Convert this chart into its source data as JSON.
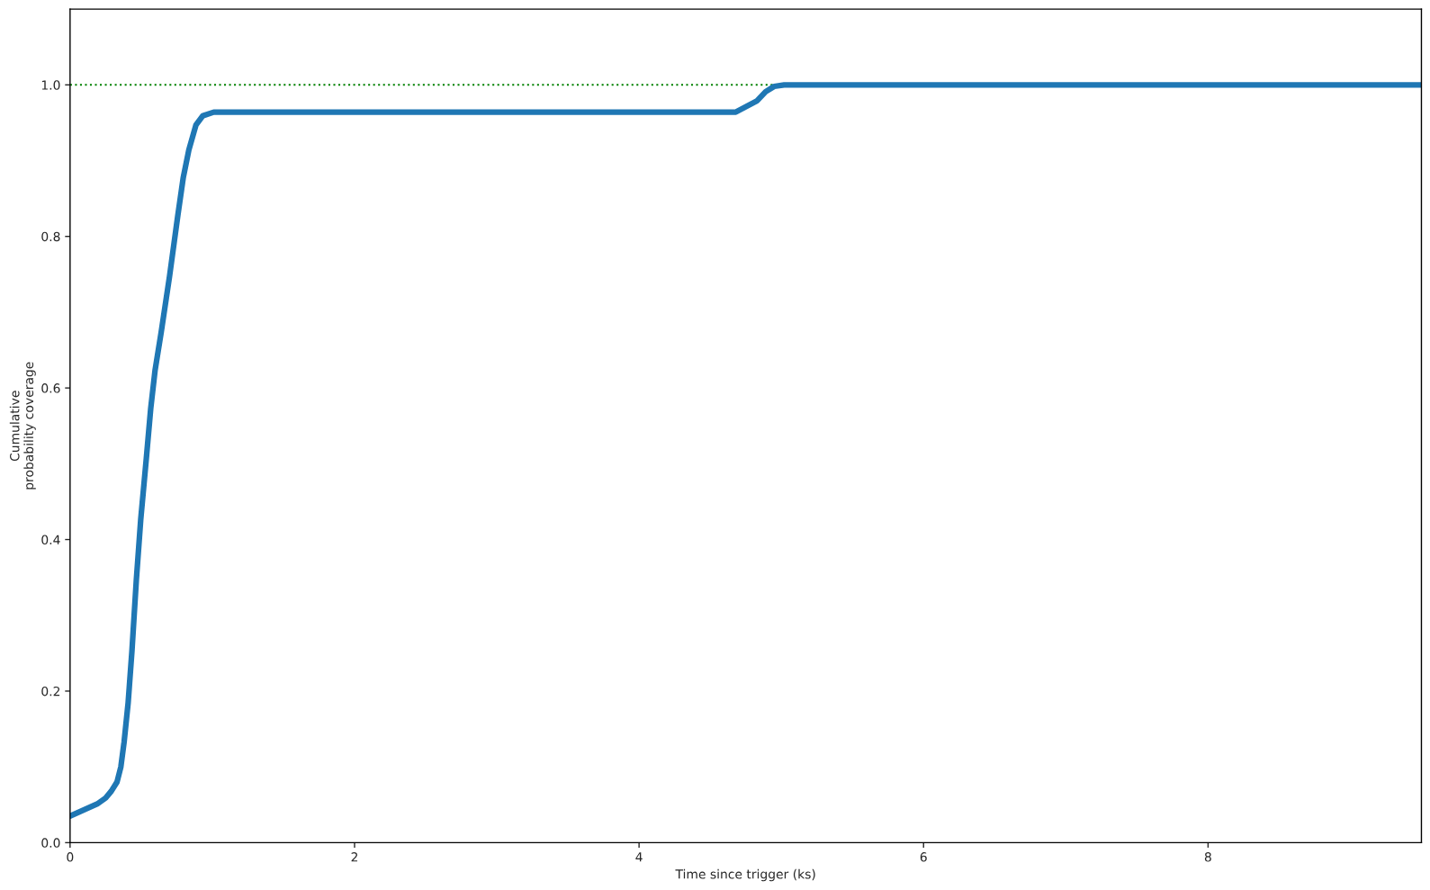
{
  "chart_data": {
    "type": "line",
    "xlabel": "Time since trigger (ks)",
    "ylabel": "Cumulative\nprobability coverage",
    "series": [
      {
        "color": "#1f77b4",
        "x": [
          0,
          0.19,
          0.25,
          0.29,
          0.33,
          0.357,
          0.38,
          0.408,
          0.435,
          0.466,
          0.497,
          0.536,
          0.567,
          0.598,
          0.641,
          0.699,
          0.757,
          0.796,
          0.835,
          0.885,
          0.932,
          1.01,
          2,
          3,
          4,
          4.68,
          4.74,
          4.83,
          4.89,
          4.95,
          5.02,
          6,
          7,
          8,
          9,
          9.5
        ],
        "values": [
          0.035,
          0.051,
          0.059,
          0.068,
          0.08,
          0.1,
          0.133,
          0.184,
          0.253,
          0.347,
          0.427,
          0.507,
          0.573,
          0.624,
          0.674,
          0.747,
          0.827,
          0.878,
          0.914,
          0.947,
          0.959,
          0.964,
          0.964,
          0.964,
          0.964,
          0.964,
          0.97,
          0.979,
          0.991,
          0.998,
          1.0,
          1.0,
          1.0,
          1.0,
          1.0,
          1.0
        ]
      }
    ],
    "xlim": [
      0,
      9.5
    ],
    "ylim": [
      0,
      1.1
    ],
    "xticks": [
      0,
      2,
      4,
      6,
      8
    ],
    "yticks": [
      {
        "value": 0,
        "label": "0.0"
      },
      {
        "value": 0.2,
        "label": "0.2"
      },
      {
        "value": 0.4,
        "label": "0.4"
      },
      {
        "value": 0.6,
        "label": "0.6"
      },
      {
        "value": 0.8,
        "label": "0.8"
      },
      {
        "value": 1,
        "label": "1.0"
      }
    ],
    "ref_lines": [
      {
        "axis": "y",
        "value": 1,
        "color": "#008000",
        "line_style": "dotted"
      }
    ],
    "grid": false,
    "legend": false
  }
}
